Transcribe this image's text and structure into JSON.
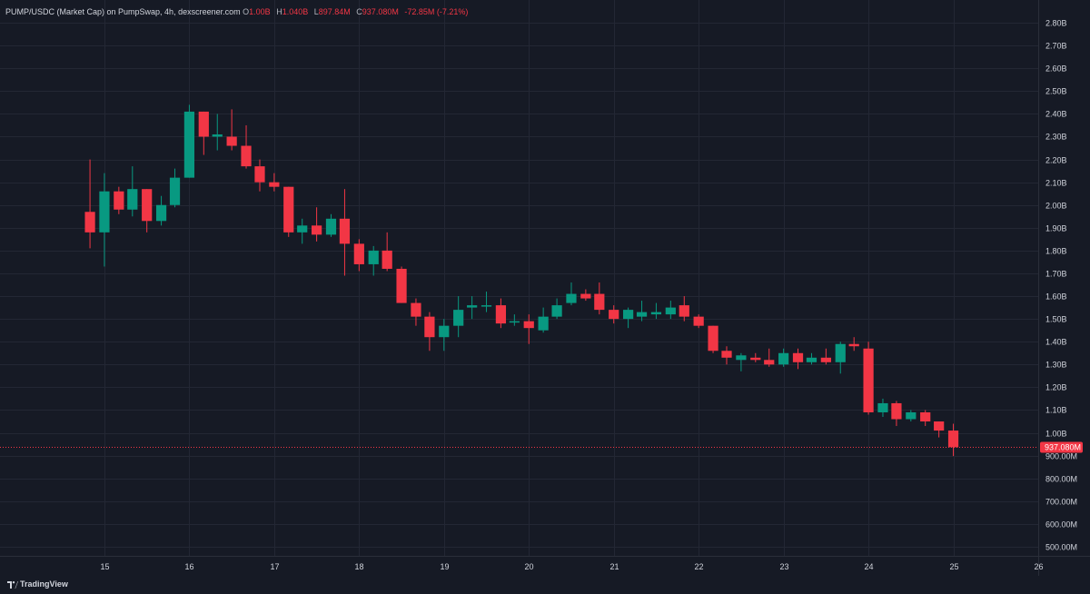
{
  "header": {
    "symbol": "PUMP/USDC (Market Cap) on PumpSwap, 4h, dexscreener.com",
    "o_label": "O",
    "o_value": "1.00B",
    "h_label": "H",
    "h_value": "1.040B",
    "l_label": "L",
    "l_value": "897.84M",
    "c_label": "C",
    "c_value": "937.080M",
    "change": "-72.85M (-7.21%)"
  },
  "footer": {
    "brand": "TradingView"
  },
  "colors": {
    "background": "#161a25",
    "up": "#089981",
    "down": "#f23645",
    "grid": "#232734",
    "text": "#d1d4dc"
  },
  "chart_data": {
    "type": "candlestick",
    "interval": "4h",
    "x_ticks": [
      "15",
      "16",
      "17",
      "18",
      "19",
      "20",
      "21",
      "22",
      "23",
      "24",
      "25",
      "26"
    ],
    "y_ticks": [
      "2.80B",
      "2.70B",
      "2.60B",
      "2.50B",
      "2.40B",
      "2.30B",
      "2.20B",
      "2.10B",
      "2.00B",
      "1.90B",
      "1.80B",
      "1.70B",
      "1.60B",
      "1.50B",
      "1.40B",
      "1.30B",
      "1.20B",
      "1.10B",
      "1.00B",
      "900.00M",
      "800.00M",
      "700.00M",
      "600.00M",
      "500.00M"
    ],
    "ylim": [
      460000000,
      2900000000
    ],
    "xlim": [
      13.77,
      26.0
    ],
    "last_price_label": "937.080M",
    "last_price": 937080000,
    "grid": true,
    "candles": [
      {
        "t": 14.83,
        "o": 1.97,
        "h": 2.2,
        "l": 1.81,
        "c": 1.88
      },
      {
        "t": 15.0,
        "o": 1.88,
        "h": 2.14,
        "l": 1.73,
        "c": 2.06
      },
      {
        "t": 15.17,
        "o": 2.06,
        "h": 2.08,
        "l": 1.96,
        "c": 1.98
      },
      {
        "t": 15.33,
        "o": 1.98,
        "h": 2.17,
        "l": 1.95,
        "c": 2.07
      },
      {
        "t": 15.5,
        "o": 2.07,
        "h": 2.07,
        "l": 1.88,
        "c": 1.93
      },
      {
        "t": 15.67,
        "o": 1.93,
        "h": 2.04,
        "l": 1.91,
        "c": 2.0
      },
      {
        "t": 15.83,
        "o": 2.0,
        "h": 2.16,
        "l": 1.99,
        "c": 2.12
      },
      {
        "t": 16.0,
        "o": 2.12,
        "h": 2.44,
        "l": 2.12,
        "c": 2.41
      },
      {
        "t": 16.17,
        "o": 2.41,
        "h": 2.41,
        "l": 2.22,
        "c": 2.3
      },
      {
        "t": 16.33,
        "o": 2.3,
        "h": 2.4,
        "l": 2.24,
        "c": 2.31
      },
      {
        "t": 16.5,
        "o": 2.3,
        "h": 2.42,
        "l": 2.24,
        "c": 2.26
      },
      {
        "t": 16.67,
        "o": 2.26,
        "h": 2.35,
        "l": 2.16,
        "c": 2.17
      },
      {
        "t": 16.83,
        "o": 2.17,
        "h": 2.2,
        "l": 2.06,
        "c": 2.1
      },
      {
        "t": 17.0,
        "o": 2.1,
        "h": 2.14,
        "l": 2.06,
        "c": 2.08
      },
      {
        "t": 17.17,
        "o": 2.08,
        "h": 2.08,
        "l": 1.86,
        "c": 1.88
      },
      {
        "t": 17.33,
        "o": 1.88,
        "h": 1.94,
        "l": 1.83,
        "c": 1.91
      },
      {
        "t": 17.5,
        "o": 1.91,
        "h": 1.99,
        "l": 1.84,
        "c": 1.87
      },
      {
        "t": 17.67,
        "o": 1.87,
        "h": 1.96,
        "l": 1.86,
        "c": 1.94
      },
      {
        "t": 17.83,
        "o": 1.94,
        "h": 2.07,
        "l": 1.69,
        "c": 1.83
      },
      {
        "t": 18.0,
        "o": 1.83,
        "h": 1.85,
        "l": 1.71,
        "c": 1.74
      },
      {
        "t": 18.17,
        "o": 1.74,
        "h": 1.82,
        "l": 1.69,
        "c": 1.8
      },
      {
        "t": 18.33,
        "o": 1.8,
        "h": 1.88,
        "l": 1.71,
        "c": 1.72
      },
      {
        "t": 18.5,
        "o": 1.72,
        "h": 1.73,
        "l": 1.57,
        "c": 1.57
      },
      {
        "t": 18.67,
        "o": 1.57,
        "h": 1.59,
        "l": 1.47,
        "c": 1.51
      },
      {
        "t": 18.83,
        "o": 1.51,
        "h": 1.53,
        "l": 1.36,
        "c": 1.42
      },
      {
        "t": 19.0,
        "o": 1.42,
        "h": 1.5,
        "l": 1.36,
        "c": 1.47
      },
      {
        "t": 19.17,
        "o": 1.47,
        "h": 1.6,
        "l": 1.42,
        "c": 1.54
      },
      {
        "t": 19.33,
        "o": 1.55,
        "h": 1.6,
        "l": 1.5,
        "c": 1.56
      },
      {
        "t": 19.5,
        "o": 1.56,
        "h": 1.62,
        "l": 1.53,
        "c": 1.56
      },
      {
        "t": 19.67,
        "o": 1.56,
        "h": 1.59,
        "l": 1.46,
        "c": 1.48
      },
      {
        "t": 19.83,
        "o": 1.49,
        "h": 1.52,
        "l": 1.47,
        "c": 1.49
      },
      {
        "t": 20.0,
        "o": 1.49,
        "h": 1.52,
        "l": 1.39,
        "c": 1.46
      },
      {
        "t": 20.17,
        "o": 1.45,
        "h": 1.55,
        "l": 1.44,
        "c": 1.51
      },
      {
        "t": 20.33,
        "o": 1.51,
        "h": 1.59,
        "l": 1.5,
        "c": 1.56
      },
      {
        "t": 20.5,
        "o": 1.57,
        "h": 1.66,
        "l": 1.56,
        "c": 1.61
      },
      {
        "t": 20.67,
        "o": 1.61,
        "h": 1.63,
        "l": 1.58,
        "c": 1.59
      },
      {
        "t": 20.83,
        "o": 1.61,
        "h": 1.66,
        "l": 1.52,
        "c": 1.54
      },
      {
        "t": 21.0,
        "o": 1.54,
        "h": 1.56,
        "l": 1.48,
        "c": 1.5
      },
      {
        "t": 21.17,
        "o": 1.5,
        "h": 1.55,
        "l": 1.46,
        "c": 1.54
      },
      {
        "t": 21.33,
        "o": 1.51,
        "h": 1.58,
        "l": 1.49,
        "c": 1.53
      },
      {
        "t": 21.5,
        "o": 1.52,
        "h": 1.57,
        "l": 1.5,
        "c": 1.53
      },
      {
        "t": 21.67,
        "o": 1.52,
        "h": 1.58,
        "l": 1.5,
        "c": 1.55
      },
      {
        "t": 21.83,
        "o": 1.56,
        "h": 1.6,
        "l": 1.49,
        "c": 1.51
      },
      {
        "t": 22.0,
        "o": 1.51,
        "h": 1.52,
        "l": 1.46,
        "c": 1.47
      },
      {
        "t": 22.17,
        "o": 1.47,
        "h": 1.47,
        "l": 1.35,
        "c": 1.36
      },
      {
        "t": 22.33,
        "o": 1.36,
        "h": 1.38,
        "l": 1.3,
        "c": 1.33
      },
      {
        "t": 22.5,
        "o": 1.32,
        "h": 1.35,
        "l": 1.27,
        "c": 1.34
      },
      {
        "t": 22.67,
        "o": 1.33,
        "h": 1.35,
        "l": 1.31,
        "c": 1.32
      },
      {
        "t": 22.83,
        "o": 1.32,
        "h": 1.37,
        "l": 1.29,
        "c": 1.3
      },
      {
        "t": 23.0,
        "o": 1.3,
        "h": 1.37,
        "l": 1.29,
        "c": 1.35
      },
      {
        "t": 23.17,
        "o": 1.35,
        "h": 1.37,
        "l": 1.28,
        "c": 1.31
      },
      {
        "t": 23.33,
        "o": 1.31,
        "h": 1.35,
        "l": 1.3,
        "c": 1.33
      },
      {
        "t": 23.5,
        "o": 1.33,
        "h": 1.37,
        "l": 1.3,
        "c": 1.31
      },
      {
        "t": 23.67,
        "o": 1.31,
        "h": 1.4,
        "l": 1.26,
        "c": 1.39
      },
      {
        "t": 23.83,
        "o": 1.39,
        "h": 1.42,
        "l": 1.36,
        "c": 1.38
      },
      {
        "t": 24.0,
        "o": 1.37,
        "h": 1.4,
        "l": 1.08,
        "c": 1.09
      },
      {
        "t": 24.17,
        "o": 1.09,
        "h": 1.15,
        "l": 1.07,
        "c": 1.13
      },
      {
        "t": 24.33,
        "o": 1.13,
        "h": 1.14,
        "l": 1.03,
        "c": 1.06
      },
      {
        "t": 24.5,
        "o": 1.06,
        "h": 1.1,
        "l": 1.05,
        "c": 1.09
      },
      {
        "t": 24.67,
        "o": 1.09,
        "h": 1.1,
        "l": 1.03,
        "c": 1.05
      },
      {
        "t": 24.83,
        "o": 1.05,
        "h": 1.05,
        "l": 0.98,
        "c": 1.01
      },
      {
        "t": 25.0,
        "o": 1.01,
        "h": 1.04,
        "l": 0.898,
        "c": 0.937
      }
    ]
  }
}
